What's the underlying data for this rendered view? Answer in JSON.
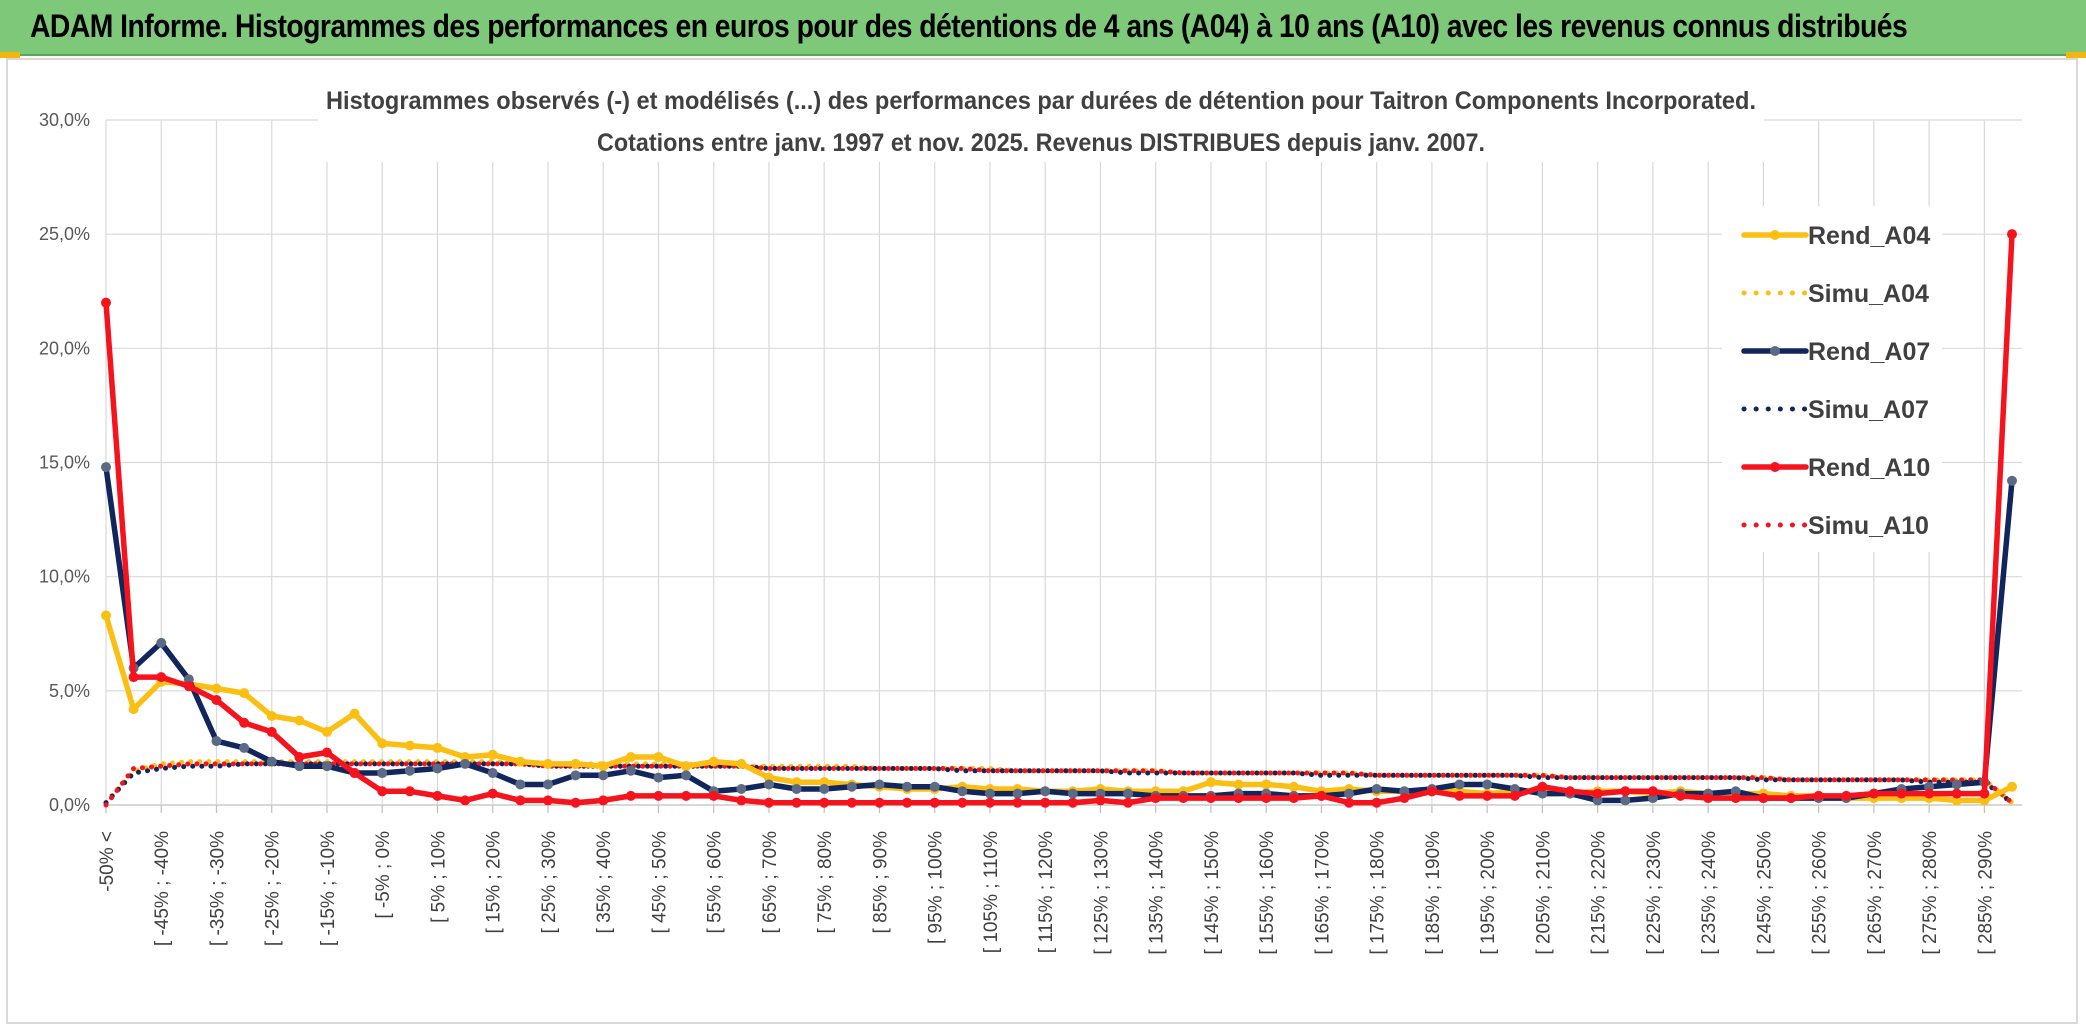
{
  "banner": {
    "title": "ADAM Informe. Histogrammes des performances en euros pour des détentions de 4 ans (A04) à 10 ans (A10) avec les revenus connus distribués"
  },
  "colors": {
    "banner_bg": "#7ec87a",
    "A04": "#fbbf14",
    "A07": "#10265c",
    "A10": "#f5141e",
    "A07_marker": "#5c6b85"
  },
  "chart_data": {
    "type": "line",
    "title": "Histogrammes observés (-) et modélisés (...) des performances par durées de détention pour Taitron Components Incorporated.",
    "subtitle": "Cotations entre janv. 1997 et nov. 2025. Revenus DISTRIBUES depuis janv. 2007.",
    "xlabel": "",
    "ylabel": "",
    "ylim": [
      0,
      30
    ],
    "yticks": [
      "0,0%",
      "5,0%",
      "10,0%",
      "15,0%",
      "20,0%",
      "25,0%",
      "30,0%"
    ],
    "grid": true,
    "legend_position": "right",
    "x_tick_labels": [
      "-50% <",
      "[ -45% ; -40%",
      "[ -35% ; -30%",
      "[ -25% ; -20%",
      "[ -15% ; -10%",
      "[ -5% ; 0%",
      "[ 5% ; 10%",
      "[ 15% ; 20%",
      "[ 25% ; 30%",
      "[ 35% ; 40%",
      "[ 45% ; 50%",
      "[ 55% ; 60%",
      "[ 65% ; 70%",
      "[ 75% ; 80%",
      "[ 85% ; 90%",
      "[ 95% ; 100%",
      "[ 105% ; 110%",
      "[ 115% ; 120%",
      "[ 125% ; 130%",
      "[ 135% ; 140%",
      "[ 145% ; 150%",
      "[ 155% ; 160%",
      "[ 165% ; 170%",
      "[ 175% ; 180%",
      "[ 185% ; 190%",
      "[ 195% ; 200%",
      "[ 205% ; 210%",
      "[ 215% ; 220%",
      "[ 225% ; 230%",
      "[ 235% ; 240%",
      "[ 245% ; 250%",
      "[ 255% ; 260%",
      "[ 265% ; 270%",
      "[ 275% ; 280%",
      "[ 285% ; 290%"
    ],
    "category_count": 70,
    "series": [
      {
        "name": "Rend_A04",
        "style": "solid",
        "color": "#fbbf14",
        "values": [
          8.3,
          4.2,
          5.4,
          5.3,
          5.1,
          4.9,
          3.9,
          3.7,
          3.2,
          4.0,
          2.7,
          2.6,
          2.5,
          2.1,
          2.2,
          1.9,
          1.8,
          1.8,
          1.7,
          2.1,
          2.1,
          1.7,
          1.9,
          1.8,
          1.2,
          1.0,
          1.0,
          0.9,
          0.8,
          0.7,
          0.7,
          0.8,
          0.7,
          0.7,
          0.6,
          0.6,
          0.7,
          0.6,
          0.6,
          0.6,
          1.0,
          0.9,
          0.9,
          0.8,
          0.6,
          0.7,
          0.6,
          0.6,
          0.6,
          0.6,
          0.5,
          0.6,
          0.6,
          0.5,
          0.6,
          0.6,
          0.5,
          0.6,
          0.5,
          0.5,
          0.5,
          0.4,
          0.4,
          0.3,
          0.3,
          0.3,
          0.3,
          0.2,
          0.2,
          0.8
        ]
      },
      {
        "name": "Simu_A04",
        "style": "dotted",
        "color": "#fbbf14",
        "values": [
          0.1,
          1.5,
          1.8,
          1.9,
          1.9,
          1.9,
          1.9,
          1.9,
          1.9,
          1.9,
          1.9,
          1.9,
          1.9,
          1.9,
          1.9,
          1.8,
          1.8,
          1.8,
          1.8,
          1.8,
          1.8,
          1.8,
          1.7,
          1.7,
          1.7,
          1.7,
          1.7,
          1.7,
          1.6,
          1.6,
          1.6,
          1.6,
          1.6,
          1.5,
          1.5,
          1.5,
          1.5,
          1.5,
          1.5,
          1.4,
          1.4,
          1.4,
          1.4,
          1.4,
          1.4,
          1.4,
          1.3,
          1.3,
          1.3,
          1.3,
          1.3,
          1.3,
          1.3,
          1.2,
          1.2,
          1.2,
          1.2,
          1.2,
          1.2,
          1.2,
          1.2,
          1.1,
          1.1,
          1.1,
          1.1,
          1.1,
          1.1,
          1.1,
          1.1,
          0.1
        ]
      },
      {
        "name": "Rend_A07",
        "style": "solid",
        "color": "#10265c",
        "values": [
          14.8,
          6.0,
          7.1,
          5.5,
          2.8,
          2.5,
          1.9,
          1.7,
          1.7,
          1.4,
          1.4,
          1.5,
          1.6,
          1.8,
          1.4,
          0.9,
          0.9,
          1.3,
          1.3,
          1.5,
          1.2,
          1.3,
          0.6,
          0.7,
          0.9,
          0.7,
          0.7,
          0.8,
          0.9,
          0.8,
          0.8,
          0.6,
          0.5,
          0.5,
          0.6,
          0.5,
          0.5,
          0.5,
          0.4,
          0.4,
          0.4,
          0.5,
          0.5,
          0.4,
          0.4,
          0.5,
          0.7,
          0.6,
          0.7,
          0.9,
          0.9,
          0.7,
          0.5,
          0.5,
          0.2,
          0.2,
          0.3,
          0.5,
          0.5,
          0.6,
          0.3,
          0.3,
          0.3,
          0.3,
          0.5,
          0.7,
          0.8,
          0.9,
          1.0,
          14.2
        ]
      },
      {
        "name": "Simu_A07",
        "style": "dotted",
        "color": "#10265c",
        "values": [
          0.1,
          1.4,
          1.6,
          1.7,
          1.7,
          1.8,
          1.8,
          1.8,
          1.8,
          1.8,
          1.8,
          1.8,
          1.8,
          1.8,
          1.8,
          1.8,
          1.7,
          1.7,
          1.7,
          1.7,
          1.7,
          1.7,
          1.7,
          1.7,
          1.6,
          1.6,
          1.6,
          1.6,
          1.6,
          1.6,
          1.6,
          1.5,
          1.5,
          1.5,
          1.5,
          1.5,
          1.5,
          1.4,
          1.4,
          1.4,
          1.4,
          1.4,
          1.4,
          1.4,
          1.3,
          1.3,
          1.3,
          1.3,
          1.3,
          1.3,
          1.3,
          1.3,
          1.2,
          1.2,
          1.2,
          1.2,
          1.2,
          1.2,
          1.2,
          1.2,
          1.1,
          1.1,
          1.1,
          1.1,
          1.1,
          1.1,
          1.0,
          1.0,
          1.0,
          0.1
        ]
      },
      {
        "name": "Rend_A10",
        "style": "solid",
        "color": "#f5141e",
        "values": [
          22.0,
          5.6,
          5.6,
          5.2,
          4.6,
          3.6,
          3.2,
          2.1,
          2.3,
          1.4,
          0.6,
          0.6,
          0.4,
          0.2,
          0.5,
          0.2,
          0.2,
          0.1,
          0.2,
          0.4,
          0.4,
          0.4,
          0.4,
          0.2,
          0.1,
          0.1,
          0.1,
          0.1,
          0.1,
          0.1,
          0.1,
          0.1,
          0.1,
          0.1,
          0.1,
          0.1,
          0.2,
          0.1,
          0.3,
          0.3,
          0.3,
          0.3,
          0.3,
          0.3,
          0.4,
          0.1,
          0.1,
          0.3,
          0.6,
          0.4,
          0.4,
          0.4,
          0.8,
          0.6,
          0.5,
          0.6,
          0.6,
          0.4,
          0.3,
          0.3,
          0.3,
          0.3,
          0.4,
          0.4,
          0.5,
          0.5,
          0.5,
          0.5,
          0.5,
          25.0
        ]
      },
      {
        "name": "Simu_A10",
        "style": "dotted",
        "color": "#f5141e",
        "values": [
          0.0,
          1.6,
          1.7,
          1.8,
          1.8,
          1.8,
          1.8,
          1.8,
          1.8,
          1.8,
          1.8,
          1.8,
          1.8,
          1.8,
          1.8,
          1.8,
          1.7,
          1.7,
          1.7,
          1.7,
          1.7,
          1.7,
          1.7,
          1.7,
          1.6,
          1.6,
          1.6,
          1.6,
          1.6,
          1.6,
          1.6,
          1.6,
          1.5,
          1.5,
          1.5,
          1.5,
          1.5,
          1.5,
          1.5,
          1.4,
          1.4,
          1.4,
          1.4,
          1.4,
          1.4,
          1.4,
          1.3,
          1.3,
          1.3,
          1.3,
          1.3,
          1.3,
          1.3,
          1.2,
          1.2,
          1.2,
          1.2,
          1.2,
          1.2,
          1.2,
          1.2,
          1.1,
          1.1,
          1.1,
          1.1,
          1.1,
          1.1,
          1.1,
          1.1,
          0.1
        ]
      }
    ]
  }
}
